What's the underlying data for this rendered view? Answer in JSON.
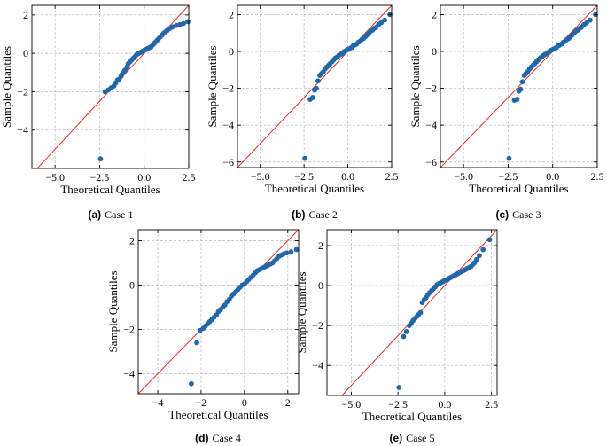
{
  "figure": {
    "line_color": "#e0302a",
    "point_color": "#2367a9",
    "grid_color": "#b8b8b8"
  },
  "chart_data": [
    {
      "id": "a",
      "type": "scatter",
      "caption_label": "(a)",
      "caption_text": "Case 1",
      "xlabel": "Theoretical Quantiles",
      "ylabel": "Sample Quantiles",
      "xlim": [
        -6.3,
        2.5
      ],
      "ylim": [
        -6.0,
        2.5
      ],
      "xticks": [
        -5.0,
        -2.5,
        0.0,
        2.5
      ],
      "xtick_labels": [
        "−5.0",
        "−2.5",
        "0.0",
        "2.5"
      ],
      "yticks": [
        -4,
        -2,
        0,
        2
      ],
      "ytick_labels": [
        "−4",
        "−2",
        "0",
        "2"
      ],
      "reference_line": [
        [
          -6.3,
          -6.3
        ],
        [
          2.5,
          2.5
        ]
      ],
      "points": [
        [
          -2.45,
          -5.5
        ],
        [
          -2.2,
          -2.0
        ],
        [
          -2.0,
          -1.9
        ],
        [
          -1.85,
          -1.8
        ],
        [
          -1.7,
          -1.7
        ],
        [
          -1.6,
          -1.55
        ],
        [
          -1.5,
          -1.4
        ],
        [
          -1.4,
          -1.35
        ],
        [
          -1.3,
          -1.2
        ],
        [
          -1.25,
          -1.1
        ],
        [
          -1.15,
          -1.0
        ],
        [
          -1.1,
          -0.9
        ],
        [
          -1.0,
          -0.8
        ],
        [
          -0.95,
          -0.7
        ],
        [
          -0.9,
          -0.55
        ],
        [
          -0.8,
          -0.45
        ],
        [
          -0.7,
          -0.35
        ],
        [
          -0.6,
          -0.25
        ],
        [
          -0.5,
          -0.15
        ],
        [
          -0.4,
          -0.05
        ],
        [
          -0.3,
          0.0
        ],
        [
          -0.2,
          0.05
        ],
        [
          -0.1,
          0.1
        ],
        [
          0.0,
          0.15
        ],
        [
          0.1,
          0.2
        ],
        [
          0.2,
          0.25
        ],
        [
          0.3,
          0.3
        ],
        [
          0.4,
          0.35
        ],
        [
          0.5,
          0.45
        ],
        [
          0.6,
          0.55
        ],
        [
          0.7,
          0.65
        ],
        [
          0.8,
          0.75
        ],
        [
          0.9,
          0.85
        ],
        [
          1.0,
          0.95
        ],
        [
          1.1,
          1.05
        ],
        [
          1.2,
          1.12
        ],
        [
          1.3,
          1.2
        ],
        [
          1.45,
          1.3
        ],
        [
          1.6,
          1.38
        ],
        [
          1.8,
          1.45
        ],
        [
          2.0,
          1.5
        ],
        [
          2.2,
          1.55
        ],
        [
          2.45,
          1.65
        ]
      ]
    },
    {
      "id": "b",
      "type": "scatter",
      "caption_label": "(b)",
      "caption_text": "Case 2",
      "xlabel": "Theoretical Quantiles",
      "ylabel": "Sample Quantiles",
      "xlim": [
        -6.3,
        2.5
      ],
      "ylim": [
        -6.3,
        2.5
      ],
      "xticks": [
        -5.0,
        -2.5,
        0.0,
        2.5
      ],
      "xtick_labels": [
        "−5.0",
        "−2.5",
        "0.0",
        "2.5"
      ],
      "yticks": [
        -6,
        -4,
        -2,
        0,
        2
      ],
      "ytick_labels": [
        "−6",
        "−4",
        "−2",
        "0",
        "2"
      ],
      "reference_line": [
        [
          -6.3,
          -6.3
        ],
        [
          2.5,
          2.5
        ]
      ],
      "points": [
        [
          -2.45,
          -5.8
        ],
        [
          -2.15,
          -2.6
        ],
        [
          -2.0,
          -2.5
        ],
        [
          -1.9,
          -2.1
        ],
        [
          -1.8,
          -2.0
        ],
        [
          -1.7,
          -1.6
        ],
        [
          -1.6,
          -1.3
        ],
        [
          -1.5,
          -1.2
        ],
        [
          -1.4,
          -1.1
        ],
        [
          -1.3,
          -0.95
        ],
        [
          -1.2,
          -0.85
        ],
        [
          -1.1,
          -0.75
        ],
        [
          -1.0,
          -0.65
        ],
        [
          -0.9,
          -0.55
        ],
        [
          -0.8,
          -0.45
        ],
        [
          -0.7,
          -0.35
        ],
        [
          -0.6,
          -0.3
        ],
        [
          -0.5,
          -0.2
        ],
        [
          -0.4,
          -0.15
        ],
        [
          -0.3,
          -0.1
        ],
        [
          -0.2,
          0.0
        ],
        [
          -0.1,
          0.05
        ],
        [
          0.0,
          0.1
        ],
        [
          0.1,
          0.15
        ],
        [
          0.2,
          0.2
        ],
        [
          0.3,
          0.3
        ],
        [
          0.4,
          0.35
        ],
        [
          0.5,
          0.4
        ],
        [
          0.6,
          0.5
        ],
        [
          0.7,
          0.55
        ],
        [
          0.8,
          0.65
        ],
        [
          0.9,
          0.7
        ],
        [
          1.0,
          0.8
        ],
        [
          1.1,
          0.9
        ],
        [
          1.2,
          1.0
        ],
        [
          1.3,
          1.1
        ],
        [
          1.4,
          1.15
        ],
        [
          1.5,
          1.25
        ],
        [
          1.6,
          1.3
        ],
        [
          1.75,
          1.45
        ],
        [
          1.9,
          1.55
        ],
        [
          2.1,
          1.7
        ],
        [
          2.4,
          2.0
        ]
      ]
    },
    {
      "id": "c",
      "type": "scatter",
      "caption_label": "(c)",
      "caption_text": "Case 3",
      "xlabel": "Theoretical Quantiles",
      "ylabel": "Sample Quantiles",
      "xlim": [
        -6.3,
        2.5
      ],
      "ylim": [
        -6.3,
        2.5
      ],
      "xticks": [
        -5.0,
        -2.5,
        0.0,
        2.5
      ],
      "xtick_labels": [
        "−5.0",
        "−2.5",
        "0.0",
        "2.5"
      ],
      "yticks": [
        -6,
        -4,
        -2,
        0,
        2
      ],
      "ytick_labels": [
        "−6",
        "−4",
        "−2",
        "0",
        "2"
      ],
      "reference_line": [
        [
          -6.3,
          -6.3
        ],
        [
          2.5,
          2.5
        ]
      ],
      "points": [
        [
          -2.45,
          -5.8
        ],
        [
          -2.15,
          -2.65
        ],
        [
          -2.0,
          -2.6
        ],
        [
          -1.9,
          -2.15
        ],
        [
          -1.8,
          -2.05
        ],
        [
          -1.7,
          -1.65
        ],
        [
          -1.6,
          -1.3
        ],
        [
          -1.5,
          -1.2
        ],
        [
          -1.4,
          -1.1
        ],
        [
          -1.3,
          -0.95
        ],
        [
          -1.2,
          -0.85
        ],
        [
          -1.1,
          -0.75
        ],
        [
          -1.0,
          -0.65
        ],
        [
          -0.9,
          -0.55
        ],
        [
          -0.8,
          -0.45
        ],
        [
          -0.7,
          -0.35
        ],
        [
          -0.6,
          -0.3
        ],
        [
          -0.5,
          -0.2
        ],
        [
          -0.4,
          -0.15
        ],
        [
          -0.3,
          -0.1
        ],
        [
          -0.2,
          0.0
        ],
        [
          -0.1,
          0.05
        ],
        [
          0.0,
          0.1
        ],
        [
          0.1,
          0.15
        ],
        [
          0.2,
          0.2
        ],
        [
          0.3,
          0.3
        ],
        [
          0.4,
          0.35
        ],
        [
          0.5,
          0.4
        ],
        [
          0.6,
          0.5
        ],
        [
          0.7,
          0.55
        ],
        [
          0.8,
          0.65
        ],
        [
          0.9,
          0.7
        ],
        [
          1.0,
          0.8
        ],
        [
          1.1,
          0.9
        ],
        [
          1.2,
          1.0
        ],
        [
          1.3,
          1.1
        ],
        [
          1.4,
          1.15
        ],
        [
          1.5,
          1.25
        ],
        [
          1.6,
          1.3
        ],
        [
          1.75,
          1.45
        ],
        [
          1.9,
          1.55
        ],
        [
          2.1,
          1.7
        ],
        [
          2.4,
          2.0
        ]
      ]
    },
    {
      "id": "d",
      "type": "scatter",
      "caption_label": "(d)",
      "caption_text": "Case 4",
      "xlabel": "Theoretical Quantiles",
      "ylabel": "Sample Quantiles",
      "xlim": [
        -4.9,
        2.5
      ],
      "ylim": [
        -4.9,
        2.5
      ],
      "xticks": [
        -4,
        -2,
        0,
        2
      ],
      "xtick_labels": [
        "−4",
        "−2",
        "0",
        "2"
      ],
      "yticks": [
        -4,
        -2,
        0,
        2
      ],
      "ytick_labels": [
        "−4",
        "−2",
        "0",
        "2"
      ],
      "reference_line": [
        [
          -4.9,
          -4.9
        ],
        [
          2.5,
          2.5
        ]
      ],
      "points": [
        [
          -2.45,
          -4.45
        ],
        [
          -2.2,
          -2.6
        ],
        [
          -2.05,
          -2.05
        ],
        [
          -1.9,
          -1.95
        ],
        [
          -1.8,
          -1.85
        ],
        [
          -1.7,
          -1.75
        ],
        [
          -1.6,
          -1.65
        ],
        [
          -1.5,
          -1.55
        ],
        [
          -1.4,
          -1.45
        ],
        [
          -1.3,
          -1.35
        ],
        [
          -1.2,
          -1.2
        ],
        [
          -1.1,
          -1.1
        ],
        [
          -1.0,
          -1.0
        ],
        [
          -0.9,
          -0.9
        ],
        [
          -0.8,
          -0.75
        ],
        [
          -0.7,
          -0.65
        ],
        [
          -0.6,
          -0.5
        ],
        [
          -0.5,
          -0.4
        ],
        [
          -0.4,
          -0.3
        ],
        [
          -0.3,
          -0.2
        ],
        [
          -0.2,
          -0.1
        ],
        [
          -0.1,
          0.0
        ],
        [
          0.0,
          0.05
        ],
        [
          0.1,
          0.15
        ],
        [
          0.2,
          0.25
        ],
        [
          0.3,
          0.35
        ],
        [
          0.4,
          0.45
        ],
        [
          0.5,
          0.55
        ],
        [
          0.6,
          0.65
        ],
        [
          0.7,
          0.7
        ],
        [
          0.8,
          0.75
        ],
        [
          0.9,
          0.8
        ],
        [
          1.0,
          0.85
        ],
        [
          1.1,
          0.9
        ],
        [
          1.2,
          0.95
        ],
        [
          1.3,
          1.0
        ],
        [
          1.4,
          1.1
        ],
        [
          1.5,
          1.2
        ],
        [
          1.6,
          1.3
        ],
        [
          1.7,
          1.35
        ],
        [
          1.8,
          1.4
        ],
        [
          1.95,
          1.45
        ],
        [
          2.15,
          1.5
        ],
        [
          2.4,
          1.6
        ]
      ]
    },
    {
      "id": "e",
      "type": "scatter",
      "caption_label": "(e)",
      "caption_text": "Case 5",
      "xlabel": "Theoretical Quantiles",
      "ylabel": "Sample Quantiles",
      "xlim": [
        -6.3,
        2.8
      ],
      "ylim": [
        -5.5,
        2.8
      ],
      "xticks": [
        -5.0,
        -2.5,
        0.0,
        2.5
      ],
      "xtick_labels": [
        "−5.0",
        "−2.5",
        "0.0",
        "2.5"
      ],
      "yticks": [
        -4,
        -2,
        0,
        2
      ],
      "ytick_labels": [
        "−4",
        "−2",
        "0",
        "2"
      ],
      "reference_line": [
        [
          -6.3,
          -6.3
        ],
        [
          2.8,
          2.8
        ]
      ],
      "points": [
        [
          -2.45,
          -5.1
        ],
        [
          -2.2,
          -2.55
        ],
        [
          -2.05,
          -2.3
        ],
        [
          -1.9,
          -2.0
        ],
        [
          -1.8,
          -1.9
        ],
        [
          -1.7,
          -1.75
        ],
        [
          -1.6,
          -1.65
        ],
        [
          -1.5,
          -1.55
        ],
        [
          -1.4,
          -1.45
        ],
        [
          -1.3,
          -1.35
        ],
        [
          -1.2,
          -0.85
        ],
        [
          -1.1,
          -0.7
        ],
        [
          -1.0,
          -0.6
        ],
        [
          -0.9,
          -0.45
        ],
        [
          -0.8,
          -0.35
        ],
        [
          -0.7,
          -0.25
        ],
        [
          -0.6,
          -0.15
        ],
        [
          -0.5,
          -0.05
        ],
        [
          -0.4,
          0.05
        ],
        [
          -0.3,
          0.1
        ],
        [
          -0.2,
          0.15
        ],
        [
          -0.1,
          0.2
        ],
        [
          0.0,
          0.25
        ],
        [
          0.1,
          0.3
        ],
        [
          0.2,
          0.35
        ],
        [
          0.3,
          0.4
        ],
        [
          0.4,
          0.45
        ],
        [
          0.5,
          0.5
        ],
        [
          0.6,
          0.55
        ],
        [
          0.7,
          0.6
        ],
        [
          0.8,
          0.65
        ],
        [
          0.9,
          0.7
        ],
        [
          1.0,
          0.75
        ],
        [
          1.1,
          0.8
        ],
        [
          1.2,
          0.85
        ],
        [
          1.3,
          0.9
        ],
        [
          1.4,
          0.95
        ],
        [
          1.5,
          1.05
        ],
        [
          1.6,
          1.15
        ],
        [
          1.7,
          1.3
        ],
        [
          1.85,
          1.5
        ],
        [
          2.05,
          1.8
        ],
        [
          2.4,
          2.3
        ]
      ]
    }
  ]
}
